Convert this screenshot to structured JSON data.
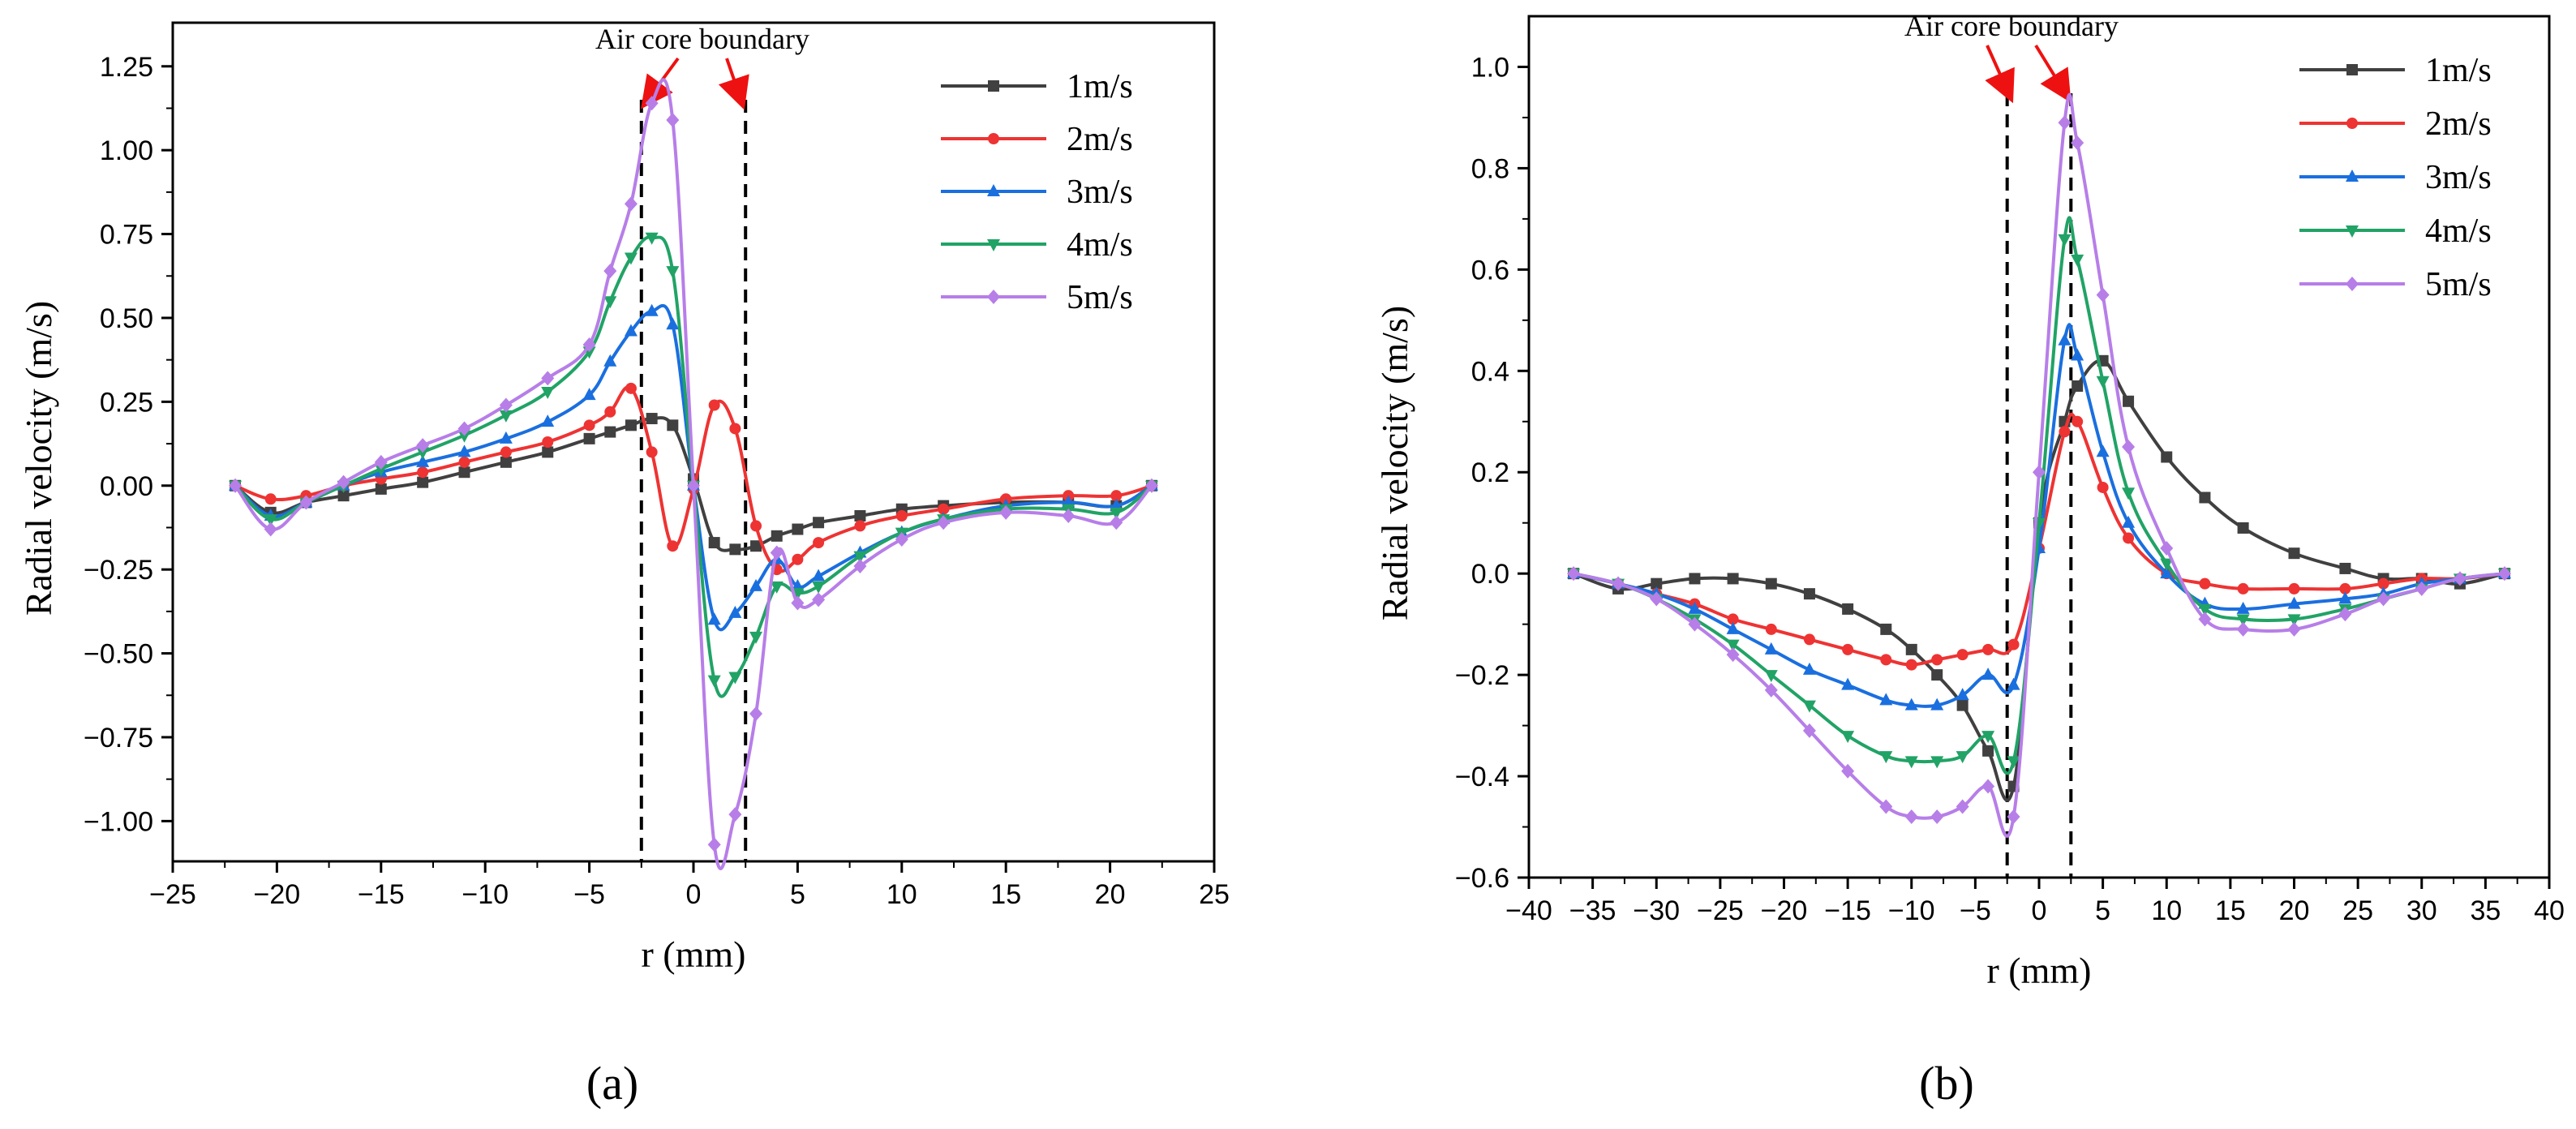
{
  "chart_data": [
    {
      "panel": "(a)",
      "type": "line",
      "xlabel": "r (mm)",
      "ylabel": "Radial velocity (m/s)",
      "xlim": [
        -25,
        25
      ],
      "ylim": [
        -1.12,
        1.38
      ],
      "xticks": [
        -25,
        -20,
        -15,
        -10,
        -5,
        0,
        5,
        10,
        15,
        20,
        25
      ],
      "xtick_labels": [
        "−25",
        "−20",
        "−15",
        "−10",
        "−5",
        "0",
        "5",
        "10",
        "15",
        "20",
        "25"
      ],
      "yticks": [
        -1.0,
        -0.75,
        -0.5,
        -0.25,
        0.0,
        0.25,
        0.5,
        0.75,
        1.0,
        1.25
      ],
      "ytick_labels": [
        "−1.00",
        "−0.75",
        "−0.50",
        "−0.25",
        "0.00",
        "0.25",
        "0.50",
        "0.75",
        "1.00",
        "1.25"
      ],
      "annotation": "Air core boundary",
      "boundaries": [
        -2.5,
        2.5
      ],
      "legend_position": "top-right",
      "series": [
        {
          "name": "1m/s",
          "color": "#404040",
          "marker": "square",
          "x": [
            -22,
            -20.3,
            -18.6,
            -16.8,
            -15,
            -13,
            -11,
            -9,
            -7,
            -5,
            -4,
            -3,
            -2,
            -1,
            0,
            1,
            2,
            3,
            4,
            5,
            6,
            8,
            10,
            12,
            15,
            18,
            20.3,
            22
          ],
          "y": [
            0.0,
            -0.08,
            -0.05,
            -0.03,
            -0.01,
            0.01,
            0.04,
            0.07,
            0.1,
            0.14,
            0.16,
            0.18,
            0.2,
            0.18,
            0.02,
            -0.17,
            -0.19,
            -0.18,
            -0.15,
            -0.13,
            -0.11,
            -0.09,
            -0.07,
            -0.06,
            -0.05,
            -0.05,
            -0.06,
            0.0
          ]
        },
        {
          "name": "2m/s",
          "color": "#ee3333",
          "marker": "circle",
          "x": [
            -22,
            -20.3,
            -18.6,
            -16.8,
            -15,
            -13,
            -11,
            -9,
            -7,
            -5,
            -4,
            -3,
            -2,
            -1,
            0,
            1,
            2,
            3,
            4,
            5,
            6,
            8,
            10,
            12,
            15,
            18,
            20.3,
            22
          ],
          "y": [
            0.0,
            -0.04,
            -0.03,
            0.0,
            0.02,
            0.04,
            0.07,
            0.1,
            0.13,
            0.18,
            0.22,
            0.29,
            0.1,
            -0.18,
            -0.01,
            0.24,
            0.17,
            -0.12,
            -0.25,
            -0.22,
            -0.17,
            -0.12,
            -0.09,
            -0.07,
            -0.04,
            -0.03,
            -0.03,
            0.0
          ]
        },
        {
          "name": "3m/s",
          "color": "#1a6fdf",
          "marker": "triangle",
          "x": [
            -22,
            -20.3,
            -18.6,
            -16.8,
            -15,
            -13,
            -11,
            -9,
            -7,
            -5,
            -4,
            -3,
            -2,
            -1,
            0,
            1,
            2,
            3,
            4,
            5,
            6,
            8,
            10,
            12,
            15,
            18,
            20.3,
            22
          ],
          "y": [
            0.0,
            -0.09,
            -0.05,
            0.0,
            0.04,
            0.07,
            0.1,
            0.14,
            0.19,
            0.27,
            0.37,
            0.46,
            0.52,
            0.48,
            0.0,
            -0.4,
            -0.38,
            -0.3,
            -0.22,
            -0.3,
            -0.27,
            -0.2,
            -0.14,
            -0.1,
            -0.06,
            -0.05,
            -0.06,
            0.0
          ]
        },
        {
          "name": "4m/s",
          "color": "#21a366",
          "marker": "triangle-down",
          "x": [
            -22,
            -20.3,
            -18.6,
            -16.8,
            -15,
            -13,
            -11,
            -9,
            -7,
            -5,
            -4,
            -3,
            -2,
            -1,
            0,
            1,
            2,
            3,
            4,
            5,
            6,
            8,
            10,
            12,
            15,
            18,
            20.3,
            22
          ],
          "y": [
            0.0,
            -0.1,
            -0.05,
            0.0,
            0.05,
            0.1,
            0.15,
            0.21,
            0.28,
            0.4,
            0.55,
            0.68,
            0.74,
            0.64,
            0.0,
            -0.58,
            -0.57,
            -0.45,
            -0.3,
            -0.32,
            -0.3,
            -0.21,
            -0.14,
            -0.1,
            -0.07,
            -0.07,
            -0.08,
            0.0
          ]
        },
        {
          "name": "5m/s",
          "color": "#b77ee8",
          "marker": "diamond",
          "x": [
            -22,
            -20.3,
            -18.6,
            -16.8,
            -15,
            -13,
            -11,
            -9,
            -7,
            -5,
            -4,
            -3,
            -2,
            -1,
            0,
            1,
            2,
            3,
            4,
            5,
            6,
            8,
            10,
            12,
            15,
            18,
            20.3,
            22
          ],
          "y": [
            0.0,
            -0.13,
            -0.05,
            0.01,
            0.07,
            0.12,
            0.17,
            0.24,
            0.32,
            0.42,
            0.64,
            0.84,
            1.14,
            1.09,
            0.0,
            -1.07,
            -0.98,
            -0.68,
            -0.2,
            -0.35,
            -0.34,
            -0.24,
            -0.16,
            -0.11,
            -0.08,
            -0.09,
            -0.11,
            0.0
          ]
        }
      ]
    },
    {
      "panel": "(b)",
      "type": "line",
      "xlabel": "r (mm)",
      "ylabel": "Radial velocity (m/s)",
      "xlim": [
        -40,
        40
      ],
      "ylim": [
        -0.6,
        1.1
      ],
      "xticks": [
        -40,
        -35,
        -30,
        -25,
        -20,
        -15,
        -10,
        -5,
        0,
        5,
        10,
        15,
        20,
        25,
        30,
        35,
        40
      ],
      "xtick_labels": [
        "−40",
        "−35",
        "−30",
        "−25",
        "−20",
        "−15",
        "−10",
        "−5",
        "0",
        "5",
        "10",
        "15",
        "20",
        "25",
        "30",
        "35",
        "40"
      ],
      "yticks": [
        -0.6,
        -0.4,
        -0.2,
        0.0,
        0.2,
        0.4,
        0.6,
        0.8,
        1.0
      ],
      "ytick_labels": [
        "−0.6",
        "−0.4",
        "−0.2",
        "0.0",
        "0.2",
        "0.4",
        "0.6",
        "0.8",
        "1.0"
      ],
      "annotation": "Air core boundary",
      "boundaries": [
        -2.5,
        2.5
      ],
      "legend_position": "top-right",
      "series": [
        {
          "name": "1m/s",
          "color": "#404040",
          "marker": "square",
          "x": [
            -36.5,
            -33,
            -30,
            -27,
            -24,
            -21,
            -18,
            -15,
            -12,
            -10,
            -8,
            -6,
            -4,
            -2,
            0,
            2,
            3,
            5,
            7,
            10,
            13,
            16,
            20,
            24,
            27,
            30,
            33,
            36.5
          ],
          "y": [
            0.0,
            -0.03,
            -0.02,
            -0.01,
            -0.01,
            -0.02,
            -0.04,
            -0.07,
            -0.11,
            -0.15,
            -0.2,
            -0.26,
            -0.35,
            -0.42,
            0.1,
            0.3,
            0.37,
            0.42,
            0.34,
            0.23,
            0.15,
            0.09,
            0.04,
            0.01,
            -0.01,
            -0.01,
            -0.02,
            0.0
          ]
        },
        {
          "name": "2m/s",
          "color": "#ee3333",
          "marker": "circle",
          "x": [
            -36.5,
            -33,
            -30,
            -27,
            -24,
            -21,
            -18,
            -15,
            -12,
            -10,
            -8,
            -6,
            -4,
            -2,
            0,
            2,
            3,
            5,
            7,
            10,
            13,
            16,
            20,
            24,
            27,
            30,
            33,
            36.5
          ],
          "y": [
            0.0,
            -0.02,
            -0.04,
            -0.06,
            -0.09,
            -0.11,
            -0.13,
            -0.15,
            -0.17,
            -0.18,
            -0.17,
            -0.16,
            -0.15,
            -0.14,
            0.05,
            0.28,
            0.3,
            0.17,
            0.07,
            0.0,
            -0.02,
            -0.03,
            -0.03,
            -0.03,
            -0.02,
            -0.01,
            -0.01,
            0.0
          ]
        },
        {
          "name": "3m/s",
          "color": "#1a6fdf",
          "marker": "triangle",
          "x": [
            -36.5,
            -33,
            -30,
            -27,
            -24,
            -21,
            -18,
            -15,
            -12,
            -10,
            -8,
            -6,
            -4,
            -2,
            0,
            2,
            3,
            5,
            7,
            10,
            13,
            16,
            20,
            24,
            27,
            30,
            33,
            36.5
          ],
          "y": [
            0.0,
            -0.02,
            -0.04,
            -0.07,
            -0.11,
            -0.15,
            -0.19,
            -0.22,
            -0.25,
            -0.26,
            -0.26,
            -0.24,
            -0.2,
            -0.22,
            0.05,
            0.46,
            0.43,
            0.24,
            0.1,
            0.0,
            -0.06,
            -0.07,
            -0.06,
            -0.05,
            -0.04,
            -0.02,
            -0.01,
            0.0
          ]
        },
        {
          "name": "4m/s",
          "color": "#21a366",
          "marker": "triangle-down",
          "x": [
            -36.5,
            -33,
            -30,
            -27,
            -24,
            -21,
            -18,
            -15,
            -12,
            -10,
            -8,
            -6,
            -4,
            -2,
            0,
            2,
            3,
            5,
            7,
            10,
            13,
            16,
            20,
            24,
            27,
            30,
            33,
            36.5
          ],
          "y": [
            0.0,
            -0.02,
            -0.05,
            -0.09,
            -0.14,
            -0.2,
            -0.26,
            -0.32,
            -0.36,
            -0.37,
            -0.37,
            -0.36,
            -0.32,
            -0.37,
            0.1,
            0.66,
            0.62,
            0.38,
            0.16,
            0.02,
            -0.07,
            -0.09,
            -0.09,
            -0.07,
            -0.05,
            -0.03,
            -0.01,
            0.0
          ]
        },
        {
          "name": "5m/s",
          "color": "#b77ee8",
          "marker": "diamond",
          "x": [
            -36.5,
            -33,
            -30,
            -27,
            -24,
            -21,
            -18,
            -15,
            -12,
            -10,
            -8,
            -6,
            -4,
            -2,
            0,
            2,
            3,
            5,
            7,
            10,
            13,
            16,
            20,
            24,
            27,
            30,
            33,
            36.5
          ],
          "y": [
            0.0,
            -0.02,
            -0.05,
            -0.1,
            -0.16,
            -0.23,
            -0.31,
            -0.39,
            -0.46,
            -0.48,
            -0.48,
            -0.46,
            -0.42,
            -0.48,
            0.2,
            0.89,
            0.85,
            0.55,
            0.25,
            0.05,
            -0.09,
            -0.11,
            -0.11,
            -0.08,
            -0.05,
            -0.03,
            -0.01,
            0.0
          ]
        }
      ]
    }
  ]
}
